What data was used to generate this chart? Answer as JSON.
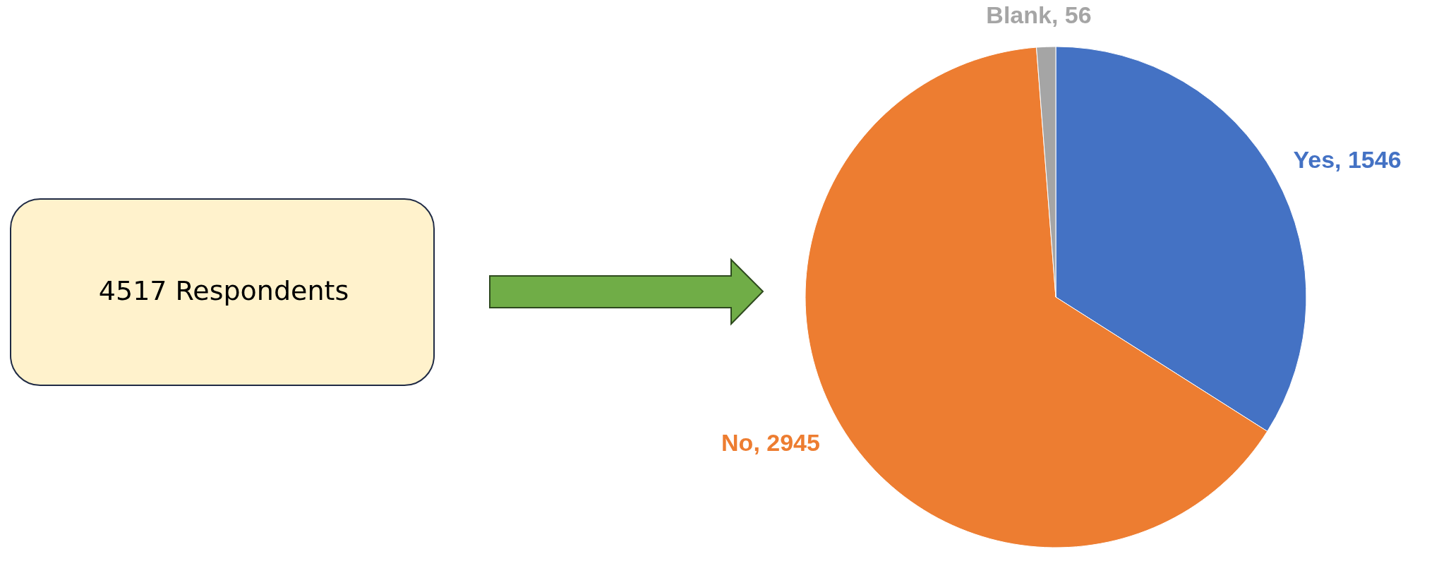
{
  "chart_data": {
    "type": "pie",
    "categories": [
      "Yes",
      "No",
      "Blank"
    ],
    "values": [
      1546,
      2945,
      56
    ],
    "colors": [
      "#4472c4",
      "#ed7d31",
      "#a5a5a5"
    ],
    "value_labels": [
      ", 1546",
      ", 2945",
      ", 56"
    ],
    "annotations": [
      "4517 Respondents"
    ]
  }
}
